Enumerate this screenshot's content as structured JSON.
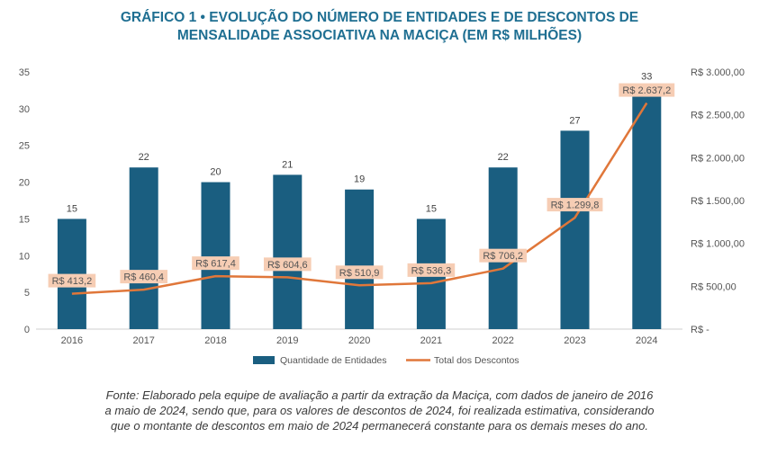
{
  "title": {
    "line1": "GRÁFICO 1 • EVOLUÇÃO DO NÚMERO DE ENTIDADES E DE DESCONTOS DE",
    "line2": "MENSALIDADE ASSOCIATIVA NA MACIÇA (EM R$ MILHÕES)"
  },
  "source": {
    "line1": "Fonte: Elaborado pela equipe de avaliação a partir da extração da Maciça, com dados de janeiro de 2016",
    "line2": "a maio de 2024, sendo que, para os valores de descontos de 2024, foi realizada estimativa, considerando",
    "line3": "que o montante de descontos em maio de 2024 permanecerá constante para os demais meses do ano."
  },
  "colors": {
    "bar": "#1a5e80",
    "line": "#e0773a",
    "label_bg": "#f6cdb4",
    "title": "#1f6f92"
  },
  "chart_data": {
    "type": "bar",
    "categories": [
      "2016",
      "2017",
      "2018",
      "2019",
      "2020",
      "2021",
      "2022",
      "2023",
      "2024"
    ],
    "series": [
      {
        "name": "Quantidade de Entidades",
        "type": "bar",
        "axis": "left",
        "values": [
          15,
          22,
          20,
          21,
          19,
          15,
          22,
          27,
          33
        ],
        "labels": [
          "15",
          "22",
          "20",
          "21",
          "19",
          "15",
          "22",
          "27",
          "33"
        ]
      },
      {
        "name": "Total dos Descontos",
        "type": "line",
        "axis": "right",
        "values": [
          413.2,
          460.4,
          617.4,
          604.6,
          510.9,
          536.3,
          706.2,
          1299.8,
          2637.2
        ],
        "labels": [
          "R$ 413,2",
          "R$ 460,4",
          "R$ 617,4",
          "R$ 604,6",
          "R$ 510,9",
          "R$ 536,3",
          "R$ 706,2",
          "R$ 1.299,8",
          "R$ 2.637,2"
        ]
      }
    ],
    "ylim_left": [
      0,
      35
    ],
    "ylim_right": [
      0,
      3000
    ],
    "left_ticks": [
      "0",
      "5",
      "10",
      "15",
      "20",
      "25",
      "30",
      "35"
    ],
    "right_ticks": [
      "R$ -",
      "R$ 500,00",
      "R$ 1.000,00",
      "R$ 1.500,00",
      "R$ 2.000,00",
      "R$ 2.500,00",
      "R$ 3.000,00"
    ],
    "grid": false,
    "legend_position": "bottom"
  }
}
